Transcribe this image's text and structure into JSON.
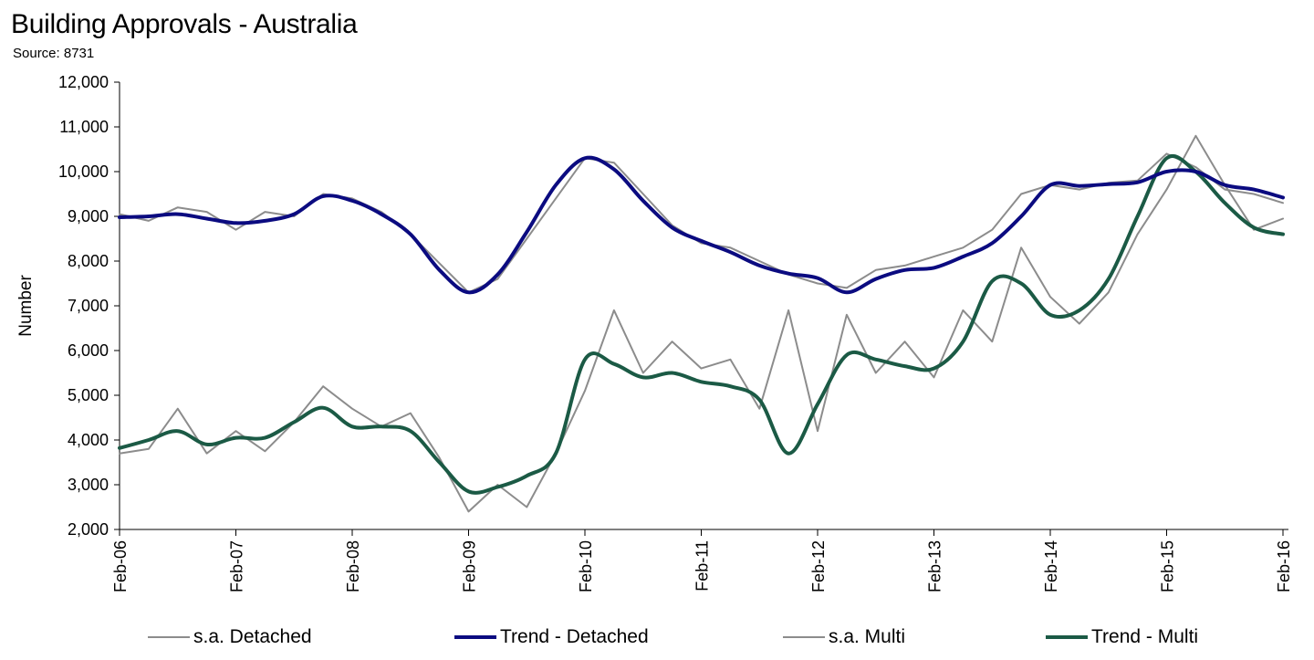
{
  "title": "Building Approvals - Australia",
  "subtitle": "Source: 8731",
  "chart_data": {
    "type": "line",
    "title": "Building Approvals - Australia",
    "subtitle": "Source: 8731",
    "xlabel": "",
    "ylabel": "Number",
    "ylim": [
      2000,
      12000
    ],
    "yticks": [
      2000,
      3000,
      4000,
      5000,
      6000,
      7000,
      8000,
      9000,
      10000,
      11000,
      12000
    ],
    "ytick_labels": [
      "2,000",
      "3,000",
      "4,000",
      "5,000",
      "6,000",
      "7,000",
      "8,000",
      "9,000",
      "10,000",
      "11,000",
      "12,000"
    ],
    "x_start": "2006-02",
    "x_end": "2016-02",
    "xticks": [
      "Feb-06",
      "Feb-07",
      "Feb-08",
      "Feb-09",
      "Feb-10",
      "Feb-11",
      "Feb-12",
      "Feb-13",
      "Feb-14",
      "Feb-15",
      "Feb-16"
    ],
    "grid": false,
    "legend_position": "bottom",
    "series": [
      {
        "name": "s.a. Detached",
        "color": "#8c8c8c",
        "points": [
          [
            "2006-02",
            9050
          ],
          [
            "2006-05",
            8900
          ],
          [
            "2006-08",
            9200
          ],
          [
            "2006-11",
            9100
          ],
          [
            "2007-02",
            8700
          ],
          [
            "2007-05",
            9100
          ],
          [
            "2007-08",
            9000
          ],
          [
            "2007-11",
            9500
          ],
          [
            "2008-02",
            9400
          ],
          [
            "2008-05",
            9100
          ],
          [
            "2008-08",
            8600
          ],
          [
            "2008-11",
            7950
          ],
          [
            "2009-02",
            7300
          ],
          [
            "2009-05",
            7600
          ],
          [
            "2009-08",
            8500
          ],
          [
            "2009-11",
            9400
          ],
          [
            "2010-02",
            10300
          ],
          [
            "2010-05",
            10200
          ],
          [
            "2010-08",
            9500
          ],
          [
            "2010-11",
            8800
          ],
          [
            "2011-02",
            8400
          ],
          [
            "2011-05",
            8300
          ],
          [
            "2011-08",
            8000
          ],
          [
            "2011-11",
            7700
          ],
          [
            "2012-02",
            7500
          ],
          [
            "2012-05",
            7400
          ],
          [
            "2012-08",
            7800
          ],
          [
            "2012-11",
            7900
          ],
          [
            "2013-02",
            8100
          ],
          [
            "2013-05",
            8300
          ],
          [
            "2013-08",
            8700
          ],
          [
            "2013-11",
            9500
          ],
          [
            "2014-02",
            9700
          ],
          [
            "2014-05",
            9600
          ],
          [
            "2014-08",
            9750
          ],
          [
            "2014-11",
            9800
          ],
          [
            "2015-02",
            10400
          ],
          [
            "2015-05",
            10100
          ],
          [
            "2015-08",
            9600
          ],
          [
            "2015-11",
            9500
          ],
          [
            "2016-02",
            9300
          ]
        ]
      },
      {
        "name": "Trend - Detached",
        "color": "#0b0b80",
        "points": [
          [
            "2006-02",
            8980
          ],
          [
            "2006-05",
            9000
          ],
          [
            "2006-08",
            9050
          ],
          [
            "2006-11",
            8950
          ],
          [
            "2007-02",
            8850
          ],
          [
            "2007-05",
            8900
          ],
          [
            "2007-08",
            9050
          ],
          [
            "2007-11",
            9450
          ],
          [
            "2008-02",
            9350
          ],
          [
            "2008-05",
            9050
          ],
          [
            "2008-08",
            8600
          ],
          [
            "2008-11",
            7800
          ],
          [
            "2009-02",
            7300
          ],
          [
            "2009-05",
            7700
          ],
          [
            "2009-08",
            8650
          ],
          [
            "2009-11",
            9700
          ],
          [
            "2010-02",
            10300
          ],
          [
            "2010-05",
            10050
          ],
          [
            "2010-08",
            9350
          ],
          [
            "2010-11",
            8750
          ],
          [
            "2011-02",
            8450
          ],
          [
            "2011-05",
            8200
          ],
          [
            "2011-08",
            7900
          ],
          [
            "2011-11",
            7720
          ],
          [
            "2012-02",
            7620
          ],
          [
            "2012-05",
            7300
          ],
          [
            "2012-08",
            7600
          ],
          [
            "2012-11",
            7800
          ],
          [
            "2013-02",
            7850
          ],
          [
            "2013-05",
            8100
          ],
          [
            "2013-08",
            8400
          ],
          [
            "2013-11",
            9000
          ],
          [
            "2014-02",
            9700
          ],
          [
            "2014-05",
            9680
          ],
          [
            "2014-08",
            9720
          ],
          [
            "2014-11",
            9760
          ],
          [
            "2015-02",
            10000
          ],
          [
            "2015-05",
            10000
          ],
          [
            "2015-08",
            9700
          ],
          [
            "2015-11",
            9600
          ],
          [
            "2016-02",
            9420
          ]
        ]
      },
      {
        "name": "s.a. Multi",
        "color": "#8c8c8c",
        "points": [
          [
            "2006-02",
            3700
          ],
          [
            "2006-05",
            3800
          ],
          [
            "2006-08",
            4700
          ],
          [
            "2006-11",
            3700
          ],
          [
            "2007-02",
            4200
          ],
          [
            "2007-05",
            3750
          ],
          [
            "2007-08",
            4400
          ],
          [
            "2007-11",
            5200
          ],
          [
            "2008-02",
            4700
          ],
          [
            "2008-05",
            4300
          ],
          [
            "2008-08",
            4600
          ],
          [
            "2008-11",
            3600
          ],
          [
            "2009-02",
            2400
          ],
          [
            "2009-05",
            3000
          ],
          [
            "2009-08",
            2500
          ],
          [
            "2009-11",
            3700
          ],
          [
            "2010-02",
            5100
          ],
          [
            "2010-05",
            6900
          ],
          [
            "2010-08",
            5500
          ],
          [
            "2010-11",
            6200
          ],
          [
            "2011-02",
            5600
          ],
          [
            "2011-05",
            5800
          ],
          [
            "2011-08",
            4700
          ],
          [
            "2011-11",
            6900
          ],
          [
            "2012-02",
            4200
          ],
          [
            "2012-05",
            6800
          ],
          [
            "2012-08",
            5500
          ],
          [
            "2012-11",
            6200
          ],
          [
            "2013-02",
            5400
          ],
          [
            "2013-05",
            6900
          ],
          [
            "2013-08",
            6200
          ],
          [
            "2013-11",
            8300
          ],
          [
            "2014-02",
            7200
          ],
          [
            "2014-05",
            6600
          ],
          [
            "2014-08",
            7300
          ],
          [
            "2014-11",
            8600
          ],
          [
            "2015-02",
            9600
          ],
          [
            "2015-05",
            10800
          ],
          [
            "2015-08",
            9700
          ],
          [
            "2015-11",
            8700
          ],
          [
            "2016-02",
            8950
          ]
        ]
      },
      {
        "name": "Trend - Multi",
        "color": "#1b5a45",
        "points": [
          [
            "2006-02",
            3820
          ],
          [
            "2006-05",
            4000
          ],
          [
            "2006-08",
            4200
          ],
          [
            "2006-11",
            3900
          ],
          [
            "2007-02",
            4050
          ],
          [
            "2007-05",
            4050
          ],
          [
            "2007-08",
            4400
          ],
          [
            "2007-11",
            4720
          ],
          [
            "2008-02",
            4300
          ],
          [
            "2008-05",
            4300
          ],
          [
            "2008-08",
            4200
          ],
          [
            "2008-11",
            3500
          ],
          [
            "2009-02",
            2850
          ],
          [
            "2009-05",
            2950
          ],
          [
            "2009-08",
            3200
          ],
          [
            "2009-11",
            3700
          ],
          [
            "2010-02",
            5800
          ],
          [
            "2010-05",
            5700
          ],
          [
            "2010-08",
            5400
          ],
          [
            "2010-11",
            5500
          ],
          [
            "2011-02",
            5300
          ],
          [
            "2011-05",
            5200
          ],
          [
            "2011-08",
            4900
          ],
          [
            "2011-11",
            3700
          ],
          [
            "2012-02",
            4800
          ],
          [
            "2012-05",
            5900
          ],
          [
            "2012-08",
            5800
          ],
          [
            "2012-11",
            5650
          ],
          [
            "2013-02",
            5600
          ],
          [
            "2013-05",
            6200
          ],
          [
            "2013-08",
            7550
          ],
          [
            "2013-11",
            7500
          ],
          [
            "2014-02",
            6800
          ],
          [
            "2014-05",
            6900
          ],
          [
            "2014-08",
            7600
          ],
          [
            "2014-11",
            9000
          ],
          [
            "2015-02",
            10300
          ],
          [
            "2015-05",
            10000
          ],
          [
            "2015-08",
            9300
          ],
          [
            "2015-11",
            8750
          ],
          [
            "2016-02",
            8600
          ]
        ]
      }
    ]
  }
}
